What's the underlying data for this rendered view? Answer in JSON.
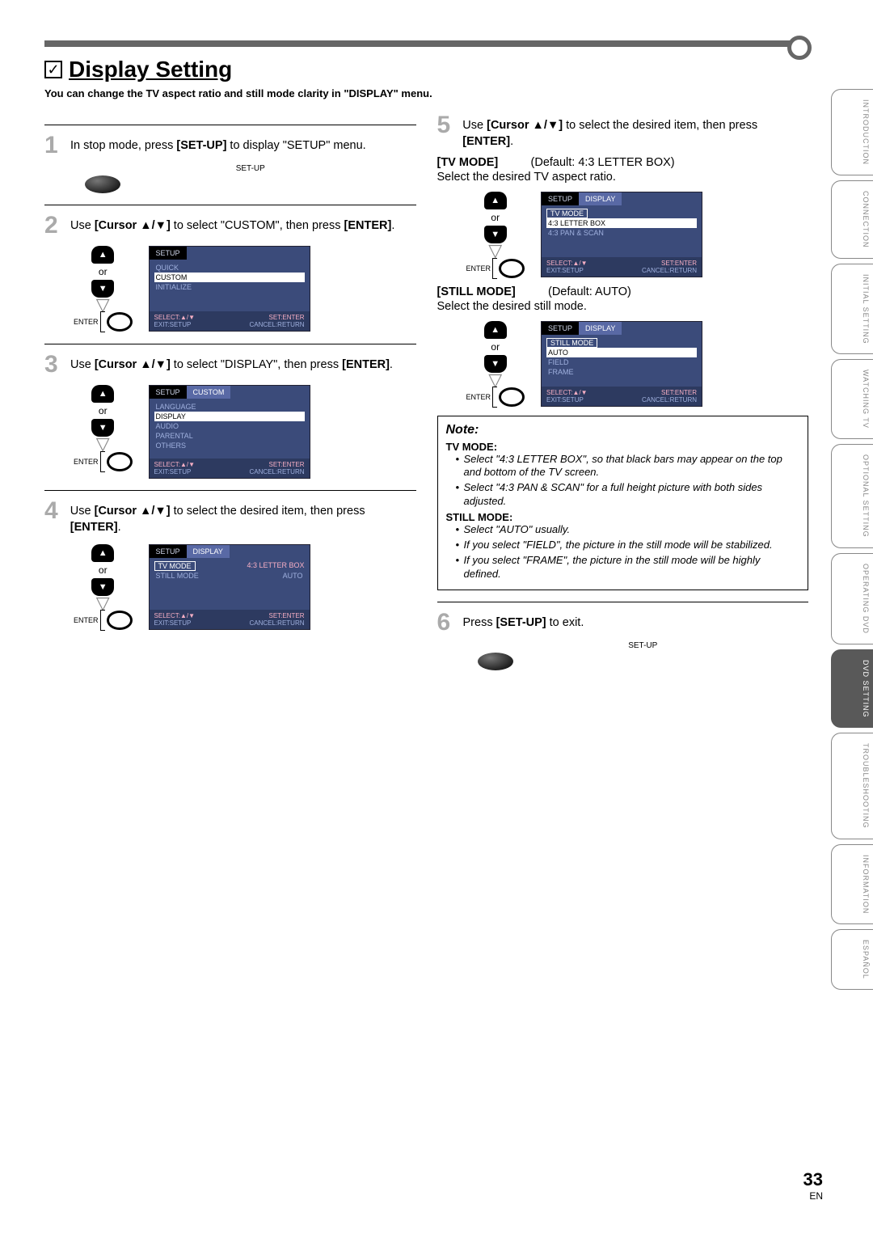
{
  "header": {
    "checkmark": "✓",
    "title": "Display Setting"
  },
  "intro": "You can change the TV aspect ratio and still mode clarity in \"DISPLAY\" menu.",
  "sideTabs": [
    "INTRODUCTION",
    "CONNECTION",
    "INITIAL SETTING",
    "WATCHING TV",
    "OPTIONAL SETTING",
    "OPERATING DVD",
    "DVD SETTING",
    "TROUBLESHOOTING",
    "INFORMATION",
    "ESPAÑOL"
  ],
  "sideActiveIndex": 6,
  "button_labels": {
    "setup": "SET-UP",
    "enter": "ENTER",
    "or": "or",
    "cursorBold": "[Cursor ▲/▼]",
    "enterBold": "[ENTER]",
    "setupBold": "[SET-UP]"
  },
  "steps": {
    "s1": {
      "num": "1",
      "textA": "In stop mode, press ",
      "textB": " to display \"SETUP\" menu."
    },
    "s2": {
      "num": "2",
      "textA": "Use ",
      "textB": " to select \"CUSTOM\", then press "
    },
    "s3": {
      "num": "3",
      "textA": "Use ",
      "textB": " to select \"DISPLAY\", then press "
    },
    "s4": {
      "num": "4",
      "textA": "Use ",
      "textB": " to select the desired item, then press "
    },
    "s5": {
      "num": "5",
      "textA": "Use ",
      "textB": " to select the desired item, then press "
    },
    "s6": {
      "num": "6",
      "textA": "Press ",
      "textB": " to exit."
    }
  },
  "osd": {
    "setup_label": "SETUP",
    "custom_label": "CUSTOM",
    "display_label": "DISPLAY",
    "foot_left_a": "SELECT:▲/▼",
    "foot_left_b": "EXIT:SETUP",
    "foot_right_a": "SET:ENTER",
    "foot_right_b": "CANCEL:RETURN",
    "m2": [
      "QUICK",
      "CUSTOM",
      "INITIALIZE"
    ],
    "m2_sel": 1,
    "m3": [
      "LANGUAGE",
      "DISPLAY",
      "AUDIO",
      "PARENTAL",
      "OTHERS"
    ],
    "m3_sel": 1,
    "m4": [
      {
        "k": "TV MODE",
        "v": "4:3 LETTER BOX",
        "box": true
      },
      {
        "k": "STILL MODE",
        "v": "AUTO"
      }
    ],
    "m5a_title": "TV MODE",
    "m5a": [
      "4:3 LETTER BOX",
      "4:3 PAN & SCAN"
    ],
    "m5a_sel": 0,
    "m5b_title": "STILL MODE",
    "m5b": [
      "AUTO",
      "FIELD",
      "FRAME"
    ],
    "m5b_sel": 0
  },
  "tvmode": {
    "label": "[TV MODE]",
    "default": "(Default: 4:3 LETTER BOX)",
    "desc": "Select the desired TV aspect ratio."
  },
  "stillmode": {
    "label": "[STILL MODE]",
    "default": "(Default: AUTO)",
    "desc": "Select the desired still mode."
  },
  "note": {
    "title": "Note:",
    "tv_label": "TV MODE:",
    "tv_items": [
      "Select \"4:3 LETTER BOX\", so that black bars may appear on the top and bottom of the TV screen.",
      "Select \"4:3 PAN & SCAN\" for a full height picture with both sides adjusted."
    ],
    "still_label": "STILL MODE:",
    "still_items": [
      "Select \"AUTO\" usually.",
      "If you select \"FIELD\", the picture in the still mode will be stabilized.",
      "If you select \"FRAME\", the picture in the still mode will be highly defined."
    ]
  },
  "page": {
    "num": "33",
    "lang": "EN"
  },
  "enter_suffix": "."
}
